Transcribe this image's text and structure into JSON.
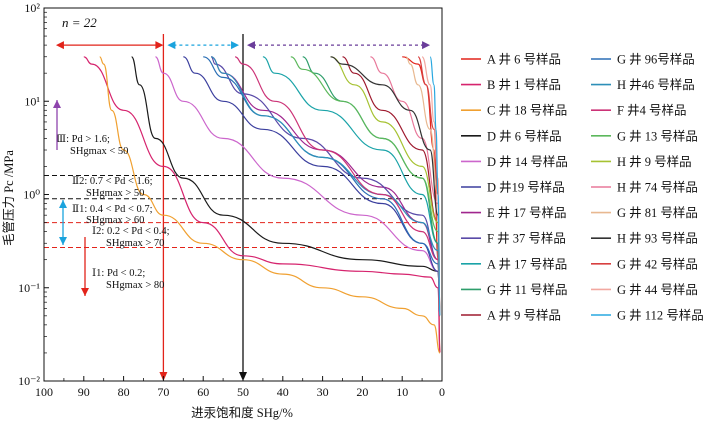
{
  "chart_data": {
    "type": "line",
    "title": "",
    "n_label": "n = 22",
    "xlabel": "进汞饱和度 SHg/%",
    "ylabel": "毛管压力 Pc /MPa",
    "x_scale": "linear",
    "x_reversed": true,
    "xlim": [
      100,
      0
    ],
    "y_scale": "log",
    "ylim": [
      0.01,
      100
    ],
    "x_ticks": [
      "100",
      "90",
      "80",
      "70",
      "60",
      "50",
      "40",
      "30",
      "20",
      "10",
      "0"
    ],
    "y_ticks": [
      "10⁻²",
      "10⁻¹",
      "10⁰",
      "10¹",
      "10²"
    ],
    "y_tick_values": [
      0.01,
      0.1,
      1,
      10,
      100
    ],
    "reference_lines": {
      "vertical": [
        {
          "x": 70,
          "color": "#e2231a"
        },
        {
          "x": 50,
          "color": "#111111"
        }
      ],
      "horizontal": [
        {
          "y": 1.6,
          "color": "#111111"
        },
        {
          "y": 0.9,
          "color": "#111111"
        },
        {
          "y": 0.5,
          "color": "#e2231a"
        },
        {
          "y": 0.27,
          "color": "#e2231a"
        }
      ]
    },
    "range_arrows": [
      {
        "from_x": 97,
        "to_x": 70,
        "y": 40,
        "color": "#e2231a"
      },
      {
        "from_x": 69,
        "to_x": 51,
        "y": 40,
        "color": "#1aa3dd"
      },
      {
        "from_x": 49,
        "to_x": 3,
        "y": 40,
        "color": "#6a3d9a"
      }
    ],
    "class_annotations": [
      {
        "class": "Ⅲ",
        "text_line1": "Ⅲ: Pd > 1.6;",
        "text_line2": "SHgmax < 50",
        "color": "#8e44ad"
      },
      {
        "class": "Ⅱ2",
        "text_line1": "Ⅱ2: 0.7 < Pd < 1.6;",
        "text_line2": "SHgmax > 50",
        "color": "#111111"
      },
      {
        "class": "Ⅱ1",
        "text_line1": "Ⅱ1: 0.4 < Pd < 0.7;",
        "text_line2": "SHgmax > 60",
        "color": "#1aa3dd"
      },
      {
        "class": "Ⅰ2",
        "text_line1": "Ⅰ2: 0.2 < Pd < 0.4;",
        "text_line2": "SHgmax > 70",
        "color": "#e2231a"
      },
      {
        "class": "Ⅰ1",
        "text_line1": "Ⅰ1: Pd < 0.2;",
        "text_line2": "SHgmax > 80",
        "color": "#e2231a"
      }
    ],
    "series": [
      {
        "name": "A 井 6 号样品",
        "color": "#e2231a",
        "points": [
          [
            0.5,
            0.02
          ],
          [
            1,
            0.2
          ],
          [
            2,
            3
          ],
          [
            4,
            15
          ],
          [
            6,
            25
          ],
          [
            10,
            30
          ]
        ]
      },
      {
        "name": "B 井 1 号样品",
        "color": "#d6246e",
        "points": [
          [
            0.5,
            0.02
          ],
          [
            1,
            0.1
          ],
          [
            3,
            0.13
          ],
          [
            10,
            0.14
          ],
          [
            20,
            0.15
          ],
          [
            40,
            0.18
          ],
          [
            50,
            0.22
          ],
          [
            60,
            0.5
          ],
          [
            70,
            2
          ],
          [
            80,
            8
          ],
          [
            88,
            25
          ],
          [
            90,
            30
          ]
        ]
      },
      {
        "name": "C 井 18 号样品",
        "color": "#f0a030",
        "points": [
          [
            0.5,
            0.02
          ],
          [
            2,
            0.04
          ],
          [
            5,
            0.05
          ],
          [
            10,
            0.06
          ],
          [
            20,
            0.08
          ],
          [
            30,
            0.1
          ],
          [
            40,
            0.14
          ],
          [
            50,
            0.2
          ],
          [
            60,
            0.3
          ],
          [
            70,
            0.6
          ],
          [
            75,
            1
          ],
          [
            80,
            3
          ],
          [
            83,
            8
          ],
          [
            85,
            25
          ],
          [
            86,
            30
          ]
        ]
      },
      {
        "name": "D 井 6 号样品",
        "color": "#1a1a1a",
        "points": [
          [
            0.5,
            0.05
          ],
          [
            1,
            0.15
          ],
          [
            5,
            0.17
          ],
          [
            20,
            0.2
          ],
          [
            40,
            0.3
          ],
          [
            55,
            0.6
          ],
          [
            65,
            1.5
          ],
          [
            72,
            4
          ],
          [
            76,
            15
          ],
          [
            78,
            30
          ]
        ]
      },
      {
        "name": "D 井 14 号样品",
        "color": "#cc66cc",
        "points": [
          [
            0.5,
            0.05
          ],
          [
            1,
            0.15
          ],
          [
            5,
            0.25
          ],
          [
            20,
            0.6
          ],
          [
            40,
            1.5
          ],
          [
            55,
            4
          ],
          [
            65,
            10
          ],
          [
            70,
            20
          ],
          [
            72,
            30
          ]
        ]
      },
      {
        "name": "D 井19 号样品",
        "color": "#3b3f9e",
        "points": [
          [
            0.5,
            0.05
          ],
          [
            1,
            0.15
          ],
          [
            5,
            0.3
          ],
          [
            15,
            0.8
          ],
          [
            30,
            2
          ],
          [
            45,
            5
          ],
          [
            55,
            10
          ],
          [
            62,
            20
          ],
          [
            65,
            30
          ]
        ]
      },
      {
        "name": "E 井 17 号样品",
        "color": "#a0268e",
        "points": [
          [
            0.5,
            0.05
          ],
          [
            1,
            0.2
          ],
          [
            5,
            0.5
          ],
          [
            15,
            1.2
          ],
          [
            30,
            3
          ],
          [
            45,
            8
          ],
          [
            55,
            20
          ],
          [
            58,
            30
          ]
        ]
      },
      {
        "name": "F 井 37 号样品",
        "color": "#5a4aa8",
        "points": [
          [
            0.5,
            0.05
          ],
          [
            1,
            0.2
          ],
          [
            5,
            0.6
          ],
          [
            20,
            1.5
          ],
          [
            35,
            4
          ],
          [
            50,
            12
          ],
          [
            57,
            25
          ],
          [
            58,
            30
          ]
        ]
      },
      {
        "name": "A 井 17 号样品",
        "color": "#1aa3a8",
        "points": [
          [
            0.5,
            0.05
          ],
          [
            1,
            0.3
          ],
          [
            5,
            1
          ],
          [
            15,
            3
          ],
          [
            30,
            8
          ],
          [
            42,
            20
          ],
          [
            45,
            30
          ]
        ]
      },
      {
        "name": "G 井 11 号样品",
        "color": "#2e9e6b",
        "points": [
          [
            0.5,
            0.05
          ],
          [
            1,
            0.3
          ],
          [
            5,
            1.5
          ],
          [
            15,
            4
          ],
          [
            25,
            10
          ],
          [
            32,
            20
          ],
          [
            35,
            30
          ]
        ]
      },
      {
        "name": "A 井 9 号样品",
        "color": "#9e1a2e",
        "points": [
          [
            0.5,
            0.05
          ],
          [
            1,
            0.5
          ],
          [
            5,
            3
          ],
          [
            15,
            8
          ],
          [
            22,
            20
          ],
          [
            25,
            30
          ]
        ]
      },
      {
        "name": "G 井 96号样品",
        "color": "#2b6fb5",
        "points": [
          [
            0.5,
            0.05
          ],
          [
            1,
            0.18
          ],
          [
            5,
            0.3
          ],
          [
            15,
            0.9
          ],
          [
            30,
            2.5
          ],
          [
            45,
            7
          ],
          [
            55,
            18
          ],
          [
            60,
            30
          ]
        ]
      },
      {
        "name": "H 井46 号样品",
        "color": "#2d8fb8",
        "points": [
          [
            0.5,
            0.05
          ],
          [
            1,
            0.25
          ],
          [
            5,
            0.5
          ],
          [
            15,
            1
          ],
          [
            30,
            2.5
          ],
          [
            45,
            7
          ],
          [
            55,
            20
          ],
          [
            58,
            30
          ]
        ]
      },
      {
        "name": "F 井4 号样品",
        "color": "#cc3377",
        "points": [
          [
            0.5,
            0.05
          ],
          [
            1,
            0.2
          ],
          [
            5,
            0.4
          ],
          [
            15,
            1
          ],
          [
            30,
            3
          ],
          [
            42,
            10
          ],
          [
            50,
            25
          ],
          [
            52,
            30
          ]
        ]
      },
      {
        "name": "G 井 13 号样品",
        "color": "#5cb85c",
        "points": [
          [
            0.5,
            0.05
          ],
          [
            1,
            0.4
          ],
          [
            5,
            1.5
          ],
          [
            15,
            4
          ],
          [
            25,
            10
          ],
          [
            35,
            22
          ],
          [
            38,
            30
          ]
        ]
      },
      {
        "name": "H 井 9 号样品",
        "color": "#a6c232",
        "points": [
          [
            0.5,
            0.05
          ],
          [
            1,
            0.5
          ],
          [
            5,
            2
          ],
          [
            15,
            6
          ],
          [
            22,
            15
          ],
          [
            28,
            30
          ]
        ]
      },
      {
        "name": "H 井 74 号样品",
        "color": "#e8789a",
        "points": [
          [
            0.5,
            0.05
          ],
          [
            1,
            0.8
          ],
          [
            5,
            4
          ],
          [
            10,
            10
          ],
          [
            15,
            20
          ],
          [
            18,
            30
          ]
        ]
      },
      {
        "name": "G 井 81 号样品",
        "color": "#e8b890",
        "points": [
          [
            0.5,
            0.05
          ],
          [
            1,
            1
          ],
          [
            3,
            5
          ],
          [
            6,
            15
          ],
          [
            8,
            25
          ],
          [
            9,
            30
          ]
        ]
      },
      {
        "name": "H 井 93 号样品",
        "color": "#333333",
        "points": [
          [
            0.5,
            0.05
          ],
          [
            1,
            0.6
          ],
          [
            3,
            3
          ],
          [
            8,
            8
          ],
          [
            15,
            15
          ],
          [
            25,
            25
          ],
          [
            28,
            30
          ]
        ]
      },
      {
        "name": "G 井 42 号样品",
        "color": "#d84040",
        "points": [
          [
            0.5,
            0.05
          ],
          [
            1,
            1
          ],
          [
            2,
            5
          ],
          [
            4,
            15
          ],
          [
            6,
            30
          ]
        ]
      },
      {
        "name": "G 井 44 号样品",
        "color": "#f2a8a0",
        "points": [
          [
            0.5,
            0.05
          ],
          [
            1,
            1.5
          ],
          [
            2,
            6
          ],
          [
            3,
            15
          ],
          [
            5,
            30
          ]
        ]
      },
      {
        "name": "G 井 112 号样品",
        "color": "#29a8e0",
        "points": [
          [
            0.5,
            0.05
          ],
          [
            1,
            1
          ],
          [
            1.5,
            5
          ],
          [
            2,
            15
          ],
          [
            3,
            30
          ]
        ]
      }
    ]
  }
}
